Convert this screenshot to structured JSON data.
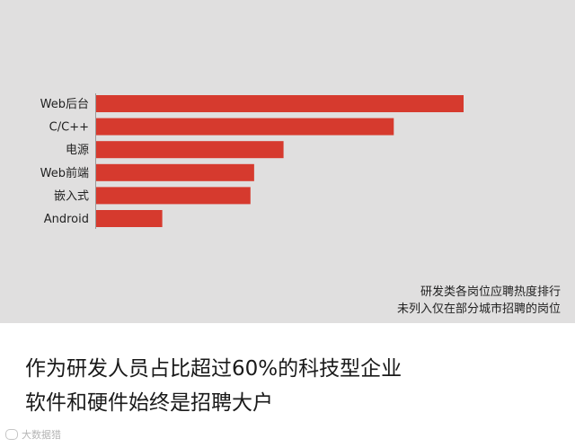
{
  "chart_data": {
    "type": "bar",
    "orientation": "horizontal",
    "categories": [
      "Web后台",
      "C/C++",
      "电源",
      "Web前端",
      "嵌入式",
      "Android"
    ],
    "values": [
      100,
      81,
      51,
      43,
      42,
      18
    ],
    "xlim": [
      0,
      100
    ],
    "bar_color": "#d63a2e",
    "grid": false,
    "legend": "none"
  },
  "note": {
    "line1": "研发类各岗位应聘热度排行",
    "line2": "未列入仅在部分城市招聘的岗位"
  },
  "caption": {
    "line1": "作为研发人员占比超过60%的科技型企业",
    "line2": "软件和硬件始终是招聘大户"
  },
  "watermark": {
    "text": "大数据猎"
  },
  "colors": {
    "panel_bg": "#e0dfdf",
    "bar": "#d63a2e",
    "axis": "#9a9a9a"
  }
}
